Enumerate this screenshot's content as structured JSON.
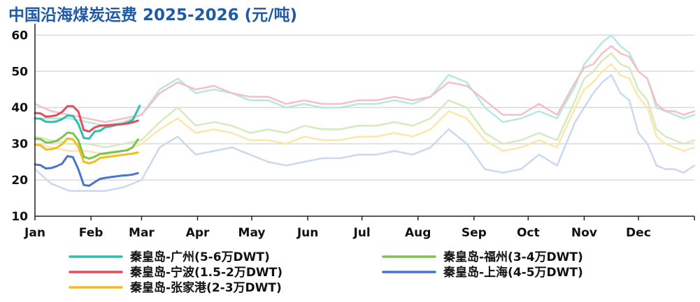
{
  "title": "中国沿海煤炭运费 2025-2026 (元/吨)",
  "chart_data": {
    "type": "line",
    "title": "中国沿海煤炭运费 2025-2026 (元/吨)",
    "xlabel": "",
    "ylabel": "",
    "ylim": [
      10,
      62
    ],
    "yticks": [
      10,
      20,
      30,
      40,
      50,
      60
    ],
    "grid": true,
    "legend_position": "bottom",
    "x_tick_labels": [
      "Jan",
      "Feb",
      "Mar",
      "Apr",
      "May",
      "Jun",
      "Jul",
      "Aug",
      "Sep",
      "Oct",
      "Nov",
      "Dec"
    ],
    "x_tick_days": [
      1,
      32,
      60,
      91,
      121,
      152,
      182,
      213,
      244,
      274,
      305,
      335
    ],
    "x_range_days": [
      1,
      366
    ],
    "series_2026": [
      {
        "name": "秦皇岛-广州(5-6万DWT)",
        "color": "#2bbfb0",
        "x": [
          1,
          4,
          7,
          10,
          13,
          16,
          19,
          22,
          25,
          28,
          31,
          34,
          37,
          40,
          43,
          46,
          49,
          52,
          55,
          57,
          59
        ],
        "y": [
          37.0,
          36.9,
          36.1,
          36.0,
          36.2,
          36.8,
          37.8,
          37.7,
          35.5,
          31.6,
          31.4,
          33.4,
          33.6,
          34.6,
          34.8,
          35.2,
          35.4,
          35.8,
          36.5,
          38.5,
          40.5
        ]
      },
      {
        "name": "秦皇岛-宁波(1.5-2万DWT)",
        "color": "#e04e5c",
        "x": [
          1,
          4,
          7,
          10,
          13,
          16,
          19,
          22,
          25,
          28,
          31,
          34,
          37,
          40,
          43,
          46,
          49,
          52,
          55,
          58
        ],
        "y": [
          38.5,
          38.4,
          37.5,
          37.6,
          37.9,
          38.8,
          40.4,
          40.4,
          38.9,
          33.8,
          33.4,
          34.5,
          35.0,
          35.1,
          35.2,
          35.3,
          35.4,
          35.6,
          35.9,
          36.4
        ]
      },
      {
        "name": "秦皇岛-福州(3-4万DWT)",
        "color": "#7cc24e",
        "x": [
          1,
          4,
          7,
          10,
          13,
          16,
          19,
          22,
          25,
          28,
          31,
          34,
          37,
          40,
          43,
          46,
          49,
          52,
          55,
          58
        ],
        "y": [
          31.4,
          31.3,
          30.4,
          30.4,
          30.8,
          31.8,
          33.1,
          32.9,
          31.0,
          26.4,
          25.9,
          26.4,
          27.2,
          27.4,
          27.6,
          27.8,
          28.0,
          28.2,
          29.0,
          31.2
        ]
      },
      {
        "name": "秦皇岛-上海(4-5万DWT)",
        "color": "#4a74c9",
        "x": [
          1,
          4,
          7,
          10,
          13,
          16,
          19,
          22,
          25,
          28,
          31,
          34,
          37,
          40,
          43,
          46,
          49,
          52,
          55,
          58
        ],
        "y": [
          24.3,
          24.1,
          23.2,
          23.3,
          23.8,
          24.5,
          26.6,
          26.3,
          23.0,
          18.6,
          18.4,
          19.4,
          20.3,
          20.6,
          20.8,
          21.0,
          21.2,
          21.3,
          21.5,
          21.9
        ]
      },
      {
        "name": "秦皇岛-张家港(2-3万DWT)",
        "color": "#f2be1d",
        "x": [
          1,
          4,
          7,
          10,
          13,
          16,
          19,
          22,
          25,
          28,
          31,
          34,
          37,
          40,
          43,
          46,
          49,
          52,
          55,
          58
        ],
        "y": [
          29.8,
          29.6,
          28.4,
          28.5,
          28.9,
          29.9,
          31.5,
          31.2,
          29.2,
          25.0,
          24.6,
          25.1,
          26.1,
          26.3,
          26.5,
          26.7,
          26.9,
          27.1,
          27.3,
          27.6
        ]
      }
    ],
    "series_2025": [
      {
        "name": "秦皇岛-广州(5-6万DWT)",
        "color": "#b6e8e2",
        "x": [
          1,
          10,
          20,
          30,
          40,
          50,
          60,
          70,
          80,
          90,
          100,
          110,
          120,
          130,
          140,
          150,
          160,
          170,
          180,
          190,
          200,
          210,
          220,
          230,
          240,
          250,
          260,
          270,
          280,
          290,
          300,
          305,
          310,
          315,
          320,
          325,
          330,
          335,
          340,
          345,
          350,
          355,
          360,
          366
        ],
        "y": [
          37,
          37,
          37,
          36,
          35,
          36,
          38,
          45,
          48,
          44,
          45,
          44,
          42,
          42,
          40,
          41,
          40,
          40,
          41,
          41,
          42,
          41,
          43,
          49,
          47,
          40,
          36,
          37,
          39,
          37,
          46,
          52,
          55,
          58,
          60,
          57,
          55,
          50,
          48,
          40,
          39,
          38,
          37,
          38
        ]
      },
      {
        "name": "秦皇岛-宁波(1.5-2万DWT)",
        "color": "#f6bfc4",
        "x": [
          1,
          10,
          20,
          30,
          40,
          50,
          60,
          70,
          80,
          90,
          100,
          110,
          120,
          130,
          140,
          150,
          160,
          170,
          180,
          190,
          200,
          210,
          220,
          230,
          240,
          250,
          260,
          270,
          280,
          290,
          300,
          305,
          310,
          315,
          320,
          325,
          330,
          335,
          340,
          345,
          350,
          355,
          360,
          366
        ],
        "y": [
          41,
          39,
          38,
          37,
          36,
          37,
          38,
          44,
          47,
          45,
          46,
          44,
          43,
          43,
          41,
          42,
          41,
          41,
          42,
          42,
          43,
          42,
          43,
          47,
          46,
          42,
          38,
          38,
          41,
          38,
          47,
          51,
          52,
          55,
          57,
          55,
          54,
          50,
          48,
          41,
          39,
          39,
          38,
          39
        ]
      },
      {
        "name": "秦皇岛-福州(3-4万DWT)",
        "color": "#d4ebc0",
        "x": [
          1,
          10,
          20,
          30,
          40,
          50,
          60,
          70,
          80,
          90,
          100,
          110,
          120,
          130,
          140,
          150,
          160,
          170,
          180,
          190,
          200,
          210,
          220,
          230,
          240,
          250,
          260,
          270,
          280,
          290,
          300,
          305,
          310,
          315,
          320,
          325,
          330,
          335,
          340,
          345,
          350,
          355,
          360,
          366
        ],
        "y": [
          32,
          31,
          30,
          30,
          29,
          30,
          31,
          36,
          40,
          35,
          36,
          35,
          33,
          34,
          33,
          35,
          34,
          34,
          35,
          35,
          36,
          35,
          37,
          42,
          40,
          33,
          30,
          31,
          33,
          31,
          42,
          48,
          50,
          53,
          55,
          52,
          51,
          45,
          42,
          34,
          32,
          31,
          30,
          31
        ]
      },
      {
        "name": "秦皇岛-上海(4-5万DWT)",
        "color": "#ccd8ef",
        "x": [
          1,
          10,
          20,
          30,
          40,
          50,
          60,
          70,
          80,
          90,
          100,
          110,
          120,
          130,
          140,
          150,
          160,
          170,
          180,
          190,
          200,
          210,
          220,
          230,
          240,
          250,
          260,
          270,
          280,
          290,
          300,
          305,
          310,
          315,
          320,
          325,
          330,
          335,
          340,
          345,
          350,
          355,
          360,
          366
        ],
        "y": [
          23,
          19,
          17,
          17,
          17,
          18,
          20,
          29,
          32,
          27,
          28,
          29,
          27,
          25,
          24,
          25,
          26,
          26,
          27,
          27,
          28,
          27,
          29,
          34,
          30,
          23,
          22,
          23,
          27,
          24,
          36,
          40,
          44,
          47,
          49,
          44,
          42,
          33,
          30,
          24,
          23,
          23,
          22,
          24
        ]
      },
      {
        "name": "秦皇岛-张家港(2-3万DWT)",
        "color": "#fbe7ac",
        "x": [
          1,
          10,
          20,
          30,
          40,
          50,
          60,
          70,
          80,
          90,
          100,
          110,
          120,
          130,
          140,
          150,
          160,
          170,
          180,
          190,
          200,
          210,
          220,
          230,
          240,
          250,
          260,
          270,
          280,
          290,
          300,
          305,
          310,
          315,
          320,
          325,
          330,
          335,
          340,
          345,
          350,
          355,
          360,
          366
        ],
        "y": [
          30,
          29,
          28,
          28,
          27,
          28,
          30,
          34,
          37,
          33,
          34,
          33,
          31,
          31,
          30,
          32,
          31,
          31,
          32,
          32,
          33,
          32,
          34,
          39,
          37,
          31,
          28,
          29,
          31,
          29,
          40,
          45,
          47,
          50,
          52,
          49,
          48,
          43,
          40,
          32,
          30,
          29,
          28,
          29
        ]
      }
    ],
    "legend": [
      {
        "label": "秦皇岛-广州(5-6万DWT)",
        "color": "#2bbfb0"
      },
      {
        "label": "秦皇岛-福州(3-4万DWT)",
        "color": "#7cc24e"
      },
      {
        "label": "秦皇岛-宁波(1.5-2万DWT)",
        "color": "#e04e5c"
      },
      {
        "label": "秦皇岛-上海(4-5万DWT)",
        "color": "#4a74c9"
      },
      {
        "label": "秦皇岛-张家港(2-3万DWT)",
        "color": "#f2be1d"
      }
    ]
  }
}
